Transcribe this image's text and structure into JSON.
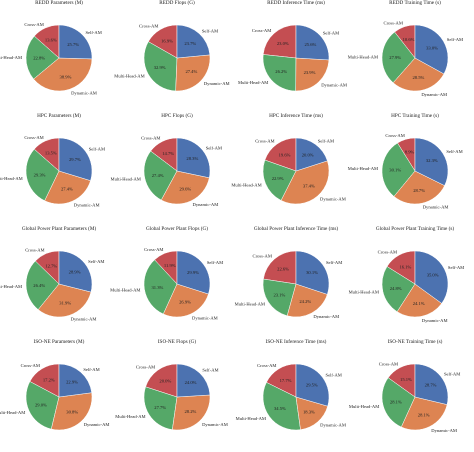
{
  "chart_data": [
    {
      "type": "pie",
      "title": "REDD Parameters (M)",
      "labels": [
        "Cross-AM",
        "Multi-Head-AM",
        "Dynamic-AM",
        "Self-AM"
      ],
      "values": [
        13.6,
        22.8,
        38.9,
        25.7
      ],
      "colors": [
        "#c44e52",
        "#55a868",
        "#dd8452",
        "#4c72b0"
      ]
    },
    {
      "type": "pie",
      "title": "REDD Flops (G)",
      "labels": [
        "Cross-AM",
        "Multi-Head-AM",
        "Dynamic-AM",
        "Self-AM"
      ],
      "values": [
        16.9,
        32.9,
        27.4,
        23.7
      ],
      "colors": [
        "#c44e52",
        "#55a868",
        "#dd8452",
        "#4c72b0"
      ]
    },
    {
      "type": "pie",
      "title": "REDD Inference Time (ms)",
      "labels": [
        "Cross-AM",
        "Multi-Head-AM",
        "Dynamic-AM",
        "Self-AM"
      ],
      "values": [
        23.0,
        26.2,
        23.9,
        25.6
      ],
      "colors": [
        "#c44e52",
        "#55a868",
        "#dd8452",
        "#4c72b0"
      ]
    },
    {
      "type": "pie",
      "title": "REDD Training Time (s)",
      "labels": [
        "Cross-AM",
        "Multi-Head-AM",
        "Dynamic-AM",
        "Self-AM"
      ],
      "values": [
        10.6,
        27.9,
        28.5,
        33.0
      ],
      "colors": [
        "#c44e52",
        "#55a868",
        "#dd8452",
        "#4c72b0"
      ]
    },
    {
      "type": "pie",
      "title": "HPC Parameters (M)",
      "labels": [
        "Cross-AM",
        "Multi-Head-AM",
        "Dynamic-AM",
        "Self-AM"
      ],
      "values": [
        13.5,
        29.3,
        27.4,
        29.7
      ],
      "colors": [
        "#c44e52",
        "#55a868",
        "#dd8452",
        "#4c72b0"
      ]
    },
    {
      "type": "pie",
      "title": "HPC Flops (G)",
      "labels": [
        "Cross-AM",
        "Multi-Head-AM",
        "Dynamic-AM",
        "Self-AM"
      ],
      "values": [
        14.7,
        27.4,
        29.6,
        28.3
      ],
      "colors": [
        "#c44e52",
        "#55a868",
        "#dd8452",
        "#4c72b0"
      ]
    },
    {
      "type": "pie",
      "title": "HPC Inference Time (ms)",
      "labels": [
        "Cross-AM",
        "Multi-Head-AM",
        "Dynamic-AM",
        "Self-AM"
      ],
      "values": [
        19.6,
        22.9,
        37.4,
        20.0
      ],
      "colors": [
        "#c44e52",
        "#55a868",
        "#dd8452",
        "#4c72b0"
      ]
    },
    {
      "type": "pie",
      "title": "HPC Training Time (s)",
      "labels": [
        "Cross-AM",
        "Multi-Head-AM",
        "Dynamic-AM",
        "Self-AM"
      ],
      "values": [
        8.9,
        30.1,
        28.7,
        32.3
      ],
      "colors": [
        "#c44e52",
        "#55a868",
        "#dd8452",
        "#4c72b0"
      ]
    },
    {
      "type": "pie",
      "title": "Global Power Plant Parameters (M)",
      "labels": [
        "Cross-AM",
        "Multi-Head-AM",
        "Dynamic-AM",
        "Self-AM"
      ],
      "values": [
        12.7,
        26.4,
        31.9,
        28.9
      ],
      "colors": [
        "#c44e52",
        "#55a868",
        "#dd8452",
        "#4c72b0"
      ]
    },
    {
      "type": "pie",
      "title": "Global Power Plant Flops (G)",
      "labels": [
        "Cross-AM",
        "Multi-Head-AM",
        "Dynamic-AM",
        "Self-AM"
      ],
      "values": [
        11.9,
        31.3,
        26.9,
        29.9
      ],
      "colors": [
        "#c44e52",
        "#55a868",
        "#dd8452",
        "#4c72b0"
      ]
    },
    {
      "type": "pie",
      "title": "Global Power Plant Inference Time (ms)",
      "labels": [
        "Cross-AM",
        "Multi-Head-AM",
        "Dynamic-AM",
        "Self-AM"
      ],
      "values": [
        22.6,
        23.1,
        24.2,
        30.1
      ],
      "colors": [
        "#c44e52",
        "#55a868",
        "#dd8452",
        "#4c72b0"
      ]
    },
    {
      "type": "pie",
      "title": "Global Power Plant Training Time (s)",
      "labels": [
        "Cross-AM",
        "Multi-Head-AM",
        "Dynamic-AM",
        "Self-AM"
      ],
      "values": [
        16.1,
        24.8,
        24.1,
        35.0
      ],
      "colors": [
        "#c44e52",
        "#55a868",
        "#dd8452",
        "#4c72b0"
      ]
    },
    {
      "type": "pie",
      "title": "ISO-NE Parameters (M)",
      "labels": [
        "Cross-AM",
        "Multi-Head-AM",
        "Dynamic-AM",
        "Self-AM"
      ],
      "values": [
        17.2,
        29.0,
        30.8,
        22.9
      ],
      "colors": [
        "#c44e52",
        "#55a868",
        "#dd8452",
        "#4c72b0"
      ]
    },
    {
      "type": "pie",
      "title": "ISO-NE Flops (G)",
      "labels": [
        "Cross-AM",
        "Multi-Head-AM",
        "Dynamic-AM",
        "Self-AM"
      ],
      "values": [
        20.0,
        27.7,
        28.2,
        24.0
      ],
      "colors": [
        "#c44e52",
        "#55a868",
        "#dd8452",
        "#4c72b0"
      ]
    },
    {
      "type": "pie",
      "title": "ISO-NE Inference Time (ms)",
      "labels": [
        "Cross-AM",
        "Multi-Head-AM",
        "Dynamic-AM",
        "Self-AM"
      ],
      "values": [
        17.7,
        34.5,
        18.3,
        29.5
      ],
      "colors": [
        "#c44e52",
        "#55a868",
        "#dd8452",
        "#4c72b0"
      ]
    },
    {
      "type": "pie",
      "title": "ISO-NE Training Time (s)",
      "labels": [
        "Cross-AM",
        "Multi-Head-AM",
        "Dynamic-AM",
        "Self-AM"
      ],
      "values": [
        15.1,
        28.1,
        28.1,
        28.7
      ],
      "colors": [
        "#c44e52",
        "#55a868",
        "#dd8452",
        "#4c72b0"
      ]
    }
  ]
}
